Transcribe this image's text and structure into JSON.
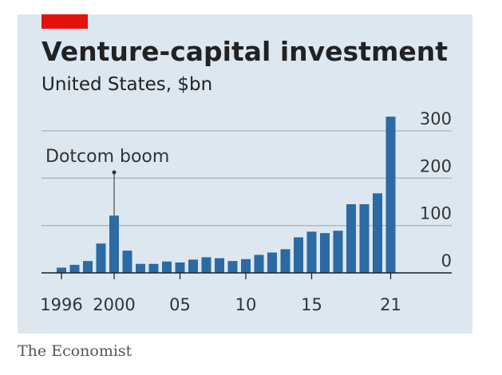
{
  "chart_data": {
    "type": "bar",
    "title": "Venture-capital investment",
    "subtitle": "United States, $bn",
    "source": "The Economist",
    "annotation": {
      "text": "Dotcom boom",
      "category_index": 4
    },
    "categories": [
      "1996",
      null,
      null,
      null,
      "2000",
      null,
      null,
      null,
      null,
      "05",
      null,
      null,
      null,
      null,
      "10",
      null,
      null,
      null,
      null,
      "15",
      null,
      null,
      null,
      null,
      null,
      "21"
    ],
    "values": [
      11,
      17,
      25,
      62,
      121,
      47,
      19,
      19,
      24,
      22,
      28,
      33,
      31,
      25,
      29,
      38,
      43,
      50,
      75,
      87,
      84,
      89,
      145,
      145,
      168,
      330
    ],
    "color": "#2b6aa3",
    "ylim": [
      0,
      300
    ],
    "yticks": [
      0,
      100,
      200,
      300
    ],
    "grid": true
  }
}
